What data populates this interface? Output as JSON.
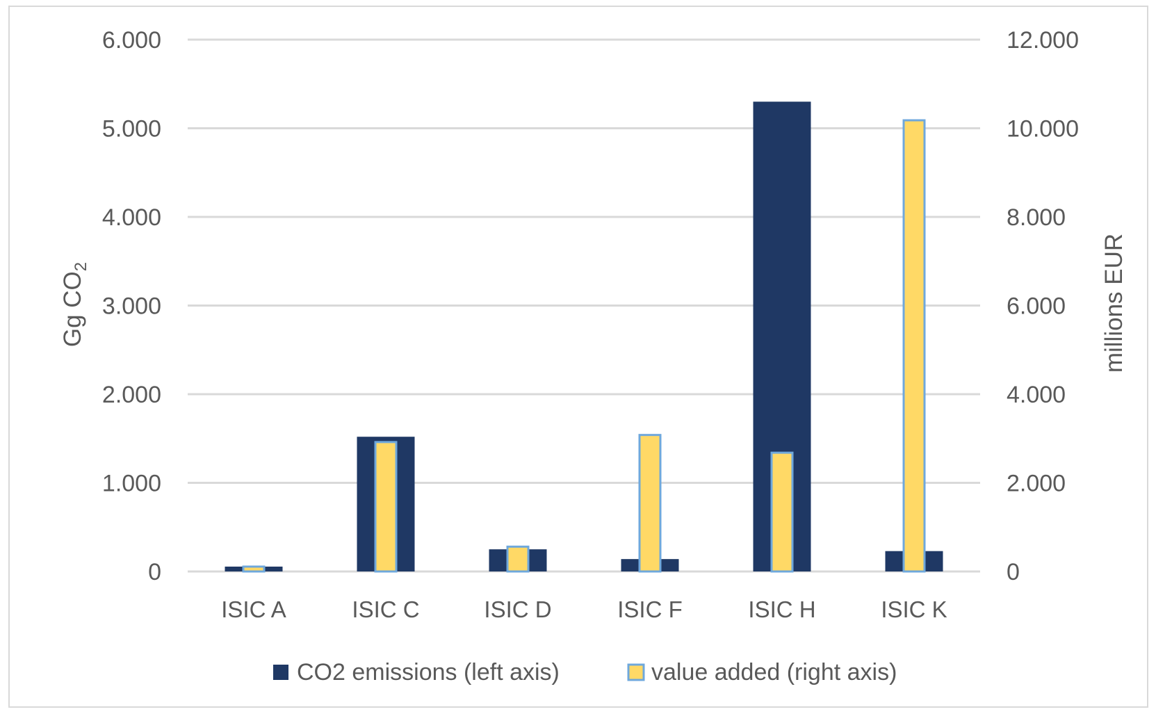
{
  "chart_data": {
    "type": "bar",
    "categories": [
      "ISIC A",
      "ISIC C",
      "ISIC D",
      "ISIC F",
      "ISIC H",
      "ISIC K"
    ],
    "series": [
      {
        "name": "CO2 emissions (left axis)",
        "axis": "left",
        "color": "#1f3864",
        "values": [
          55,
          1520,
          250,
          140,
          5300,
          230
        ]
      },
      {
        "name": "value added (right axis)",
        "axis": "right",
        "color": "#ffd966",
        "border_color": "#6fa8dc",
        "values": [
          110,
          2920,
          560,
          3080,
          2680,
          10180
        ]
      }
    ],
    "left_axis": {
      "label_main": "Gg CO",
      "label_sub": "2",
      "ylim": [
        0,
        6000
      ],
      "ticks": [
        "0",
        "1.000",
        "2.000",
        "3.000",
        "4.000",
        "5.000",
        "6.000"
      ]
    },
    "right_axis": {
      "label": "millions EUR",
      "ylim": [
        0,
        12000
      ],
      "ticks": [
        "0",
        "2.000",
        "4.000",
        "6.000",
        "8.000",
        "10.000",
        "12.000"
      ]
    },
    "grid": true,
    "legend_position": "bottom"
  }
}
